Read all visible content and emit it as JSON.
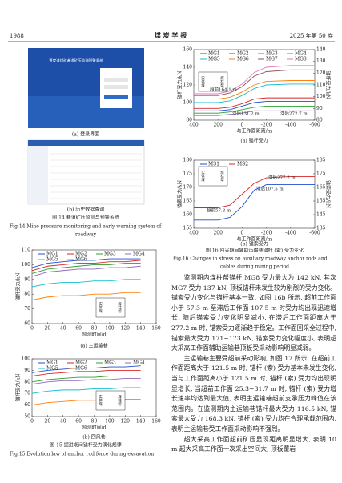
{
  "header": {
    "page": "1988",
    "journal": "煤 炭 学 报",
    "issue": "2025 年第 50 卷"
  },
  "figure14": {
    "ui_title": "曹家滩煤矿巷道矿压监测预警系统",
    "panel_a": "(a) 登录界面",
    "panel_b": "(b) 历史数据查询",
    "caption_cn": "图 14 巷道矿压监测与预警系统",
    "caption_en": [
      "Fig.14 Mine pressure monitoring and early warning system of",
      "roadway"
    ]
  },
  "figure15": {
    "caption_cn": "图 15 掘进期间锚杆受力演化规律",
    "caption_en": "Fig.15 Evolution law of anchor rod force during excavation"
  },
  "figure16": {
    "caption_cn": "图 16 回采期间辅助运输巷锚杆 (索) 受力变化",
    "caption_en": [
      "Fig.16 Changes in stress on auxiliary roadway anchor rods and",
      "cables during mining period"
    ]
  },
  "chart_data": [
    {
      "type": "line",
      "caption": "(a) 主运输巷",
      "x_label": "监测时间/d",
      "y_label": "锚杆受力/kN",
      "inset_labels": [
        "实体煤",
        "煤柱帮"
      ],
      "x": [
        0,
        20,
        40,
        60,
        80,
        100,
        120,
        140
      ],
      "xlim": [
        0,
        160
      ],
      "xticks": [
        0,
        20,
        40,
        60,
        80,
        100,
        120,
        140,
        160
      ],
      "ylim": [
        60,
        110
      ],
      "yticks": [
        60,
        70,
        80,
        90,
        100,
        110
      ],
      "series": [
        {
          "name": "MG1",
          "color": "#1f4fd1",
          "values": [
            98,
            101,
            102,
            103,
            103,
            104,
            104,
            104
          ]
        },
        {
          "name": "MG2",
          "color": "#d62728",
          "values": [
            96,
            99,
            100,
            101,
            101,
            102,
            102,
            103
          ]
        },
        {
          "name": "MG3",
          "color": "#2ca02c",
          "values": [
            94,
            97,
            98,
            99,
            100,
            100,
            101,
            101
          ]
        },
        {
          "name": "MG4",
          "color": "#9467bd",
          "values": [
            92,
            95,
            96,
            97,
            97,
            98,
            98,
            99
          ]
        },
        {
          "name": "MG5",
          "color": "#17becf",
          "values": [
            85,
            87,
            88,
            88,
            89,
            89,
            90,
            90
          ]
        },
        {
          "name": "MG6",
          "color": "#ff7f0e",
          "values": [
            76,
            78,
            79,
            79,
            80,
            80,
            81,
            81
          ]
        }
      ]
    },
    {
      "type": "line",
      "caption": "(b) 回风巷",
      "x_label": "监测时间/d",
      "y_label": "锚杆受力/kN",
      "inset_labels": [
        "实体煤",
        "煤柱帮"
      ],
      "x": [
        0,
        20,
        40,
        60,
        80,
        100,
        120,
        140
      ],
      "xlim": [
        0,
        160
      ],
      "xticks": [
        0,
        20,
        40,
        60,
        80,
        100,
        120,
        140,
        160
      ],
      "ylim": [
        50,
        100
      ],
      "yticks": [
        50,
        60,
        70,
        80,
        90,
        100
      ],
      "series": [
        {
          "name": "MG1",
          "color": "#1f4fd1",
          "values": [
            88,
            90,
            91,
            92,
            92,
            93,
            93,
            94
          ]
        },
        {
          "name": "MG2",
          "color": "#d62728",
          "values": [
            85,
            87,
            88,
            89,
            89,
            90,
            90,
            90
          ]
        },
        {
          "name": "MG3",
          "color": "#2ca02c",
          "values": [
            80,
            82,
            83,
            84,
            84,
            85,
            85,
            85
          ]
        },
        {
          "name": "MG4",
          "color": "#9467bd",
          "values": [
            78,
            80,
            81,
            81,
            82,
            82,
            83,
            83
          ]
        },
        {
          "name": "MG5",
          "color": "#17becf",
          "values": [
            70,
            72,
            73,
            73,
            74,
            74,
            75,
            75
          ]
        },
        {
          "name": "MG6",
          "color": "#ff7f0e",
          "values": [
            60,
            62,
            63,
            64,
            64,
            65,
            65,
            65
          ]
        }
      ]
    },
    {
      "type": "line",
      "caption": "(a) 锚杆受力",
      "x_label": "与工作面距离/m",
      "y_label": "锚杆受力/kN",
      "y2_label": "锚杆受力/kN",
      "inset_labels": [
        "实体煤",
        "煤柱帮"
      ],
      "annotations": [
        "超前164.1 m",
        "滞后131.2 m",
        "滞后272.7 m"
      ],
      "x": [
        400,
        200,
        100,
        0,
        -100,
        -200,
        -400,
        -600
      ],
      "xlim": [
        400,
        -600
      ],
      "xticks": [
        400,
        200,
        0,
        -200,
        -400,
        -600
      ],
      "ylim": [
        80,
        160
      ],
      "yticks": [
        80,
        100,
        120,
        140,
        160
      ],
      "y2lim": [
        80,
        140
      ],
      "y2ticks": [
        80,
        90,
        100,
        110,
        120,
        130,
        140
      ],
      "series": [
        {
          "name": "MG1",
          "color": "#1f4fd1",
          "axis": "y2",
          "values": [
            88,
            88,
            89,
            92,
            95,
            96,
            96,
            96
          ]
        },
        {
          "name": "MG2",
          "color": "#d62728",
          "axis": "y2",
          "values": [
            90,
            90,
            91,
            94,
            98,
            99,
            99,
            99
          ]
        },
        {
          "name": "MG3",
          "color": "#2ca02c",
          "axis": "y2",
          "values": [
            86,
            86,
            87,
            89,
            91,
            92,
            92,
            92
          ]
        },
        {
          "name": "MG4",
          "color": "#9467bd",
          "axis": "y2",
          "values": [
            84,
            84,
            85,
            86,
            88,
            88,
            88,
            88
          ]
        },
        {
          "name": "MG5",
          "color": "#17becf",
          "values": [
            100,
            100,
            102,
            108,
            116,
            120,
            121,
            121
          ]
        },
        {
          "name": "MG6",
          "color": "#ff7f0e",
          "values": [
            104,
            104,
            106,
            112,
            120,
            124,
            125,
            125
          ]
        },
        {
          "name": "MG7",
          "color": "#8c564b",
          "values": [
            108,
            108,
            111,
            118,
            130,
            135,
            137,
            137
          ]
        },
        {
          "name": "MG8",
          "color": "#e377c2",
          "values": [
            110,
            110,
            113,
            121,
            134,
            140,
            142,
            142
          ]
        }
      ]
    },
    {
      "type": "line",
      "caption": "(b) 锚索受力",
      "x_label": "与工作面距离/m",
      "y_label": "锚索受力/kN",
      "y2_label": "锚索受力/kN",
      "inset_labels": [
        "实体煤",
        "煤柱帮"
      ],
      "annotations": [
        "滞后277.2 m",
        "滞后107.5 m",
        "超前57.3 m"
      ],
      "x": [
        400,
        200,
        100,
        0,
        -100,
        -200,
        -400,
        -600
      ],
      "xlim": [
        400,
        -600
      ],
      "xticks": [
        400,
        200,
        0,
        -200,
        -400,
        -600
      ],
      "ylim": [
        155,
        180
      ],
      "yticks": [
        155,
        160,
        165,
        170,
        175,
        180
      ],
      "y2lim": [
        135,
        185
      ],
      "y2ticks": [
        135,
        145,
        155,
        165,
        175,
        185
      ],
      "series": [
        {
          "name": "MS1",
          "color": "#1f4fd1",
          "values": [
            158,
            158,
            159,
            163,
            169,
            171,
            171,
            171
          ]
        },
        {
          "name": "MS2",
          "color": "#d62728",
          "axis": "y2",
          "values": [
            150,
            150,
            152,
            160,
            168,
            172,
            173,
            173
          ]
        }
      ]
    }
  ],
  "body": [
    "监测期内煤柱帮锚杆 MG8 受力最大为 142 kN, 其次 MG7 受力 137 kN, 顶板锚杆未发生较为剧烈的受力变化。锚索受力变化与锚杆基本一致, 如图 16b 所示, 超前工作面小于 57.3 m 至滞后工作面 107.5 m 时受力均出现迅速增长, 随后锚索受力变化明显减小, 在滞后工作面距离大于 277.2 m 时, 锚索受力逐渐趋于稳定。工作面回采全过程中, 锚索最大受力 171~173 kN, 锚索受力变化幅度小, 表明超大采高工作面辅助运输巷顶板受采动影响明显减弱。",
    "主运输巷主要受超前采动影响, 如图 17 所示, 在超前工作面距离大于 121.5 m 时, 锚杆 (索) 受力基本未发生变化, 当与工作面距离小于 121.5 m 时, 锚杆 (索) 受力均出现明显增长, 当超前工作面 25.3~31.7 m 时, 锚杆 (索) 受力增长速率均达到最大值, 表明主运输巷超前支承压力峰值在该范围内。在监测期内主运输巷锚杆最大受力 116.5 kN, 锚索最大受力 168.3 kN, 锚杆 (索) 受力均在合理承载范围内, 表明主运输巷受工作面采动影响不强烈。",
    "超大采高工作面超前矿压显现距离明显增大, 表明 10 m 超大采高工作面一次采出空间大, 顶板覆岩"
  ]
}
